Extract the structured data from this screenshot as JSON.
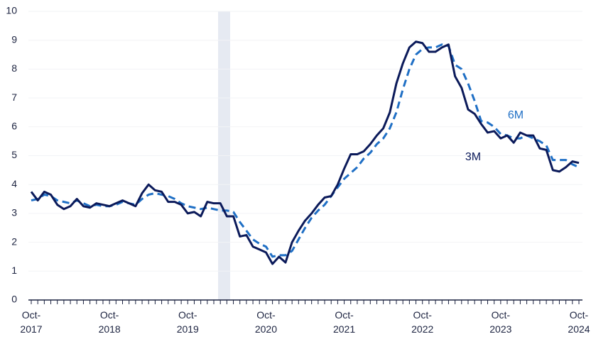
{
  "chart_data": {
    "type": "line",
    "categories": [
      "Oct-2017",
      null,
      null,
      null,
      null,
      null,
      null,
      null,
      null,
      null,
      null,
      null,
      "Oct-2018",
      null,
      null,
      null,
      null,
      null,
      null,
      null,
      null,
      null,
      null,
      null,
      "Oct-2019",
      null,
      null,
      null,
      null,
      null,
      null,
      null,
      null,
      null,
      null,
      null,
      "Oct-2020",
      null,
      null,
      null,
      null,
      null,
      null,
      null,
      null,
      null,
      null,
      null,
      "Oct-2021",
      null,
      null,
      null,
      null,
      null,
      null,
      null,
      null,
      null,
      null,
      null,
      "Oct-2022",
      null,
      null,
      null,
      null,
      null,
      null,
      null,
      null,
      null,
      null,
      null,
      "Oct-2023",
      null,
      null,
      null,
      null,
      null,
      null,
      null,
      null,
      null,
      null,
      null,
      "Oct-2024"
    ],
    "series": [
      {
        "name": "3M",
        "color": "#0b1a5a",
        "dash": false,
        "values": [
          3.75,
          3.45,
          3.75,
          3.65,
          3.3,
          3.15,
          3.25,
          3.5,
          3.25,
          3.2,
          3.35,
          3.3,
          3.25,
          3.35,
          3.45,
          3.35,
          3.25,
          3.7,
          4.0,
          3.8,
          3.75,
          3.4,
          3.4,
          3.3,
          3.0,
          3.05,
          2.9,
          3.4,
          3.35,
          3.35,
          2.9,
          2.9,
          2.2,
          2.25,
          1.85,
          1.75,
          1.65,
          1.25,
          1.5,
          1.3,
          2.0,
          2.4,
          2.75,
          3.0,
          3.3,
          3.55,
          3.6,
          4.0,
          4.55,
          5.05,
          5.05,
          5.15,
          5.4,
          5.7,
          5.95,
          6.5,
          7.5,
          8.2,
          8.75,
          8.95,
          8.9,
          8.6,
          8.6,
          8.75,
          8.85,
          7.75,
          7.35,
          6.6,
          6.45,
          6.1,
          5.8,
          5.85,
          5.6,
          5.7,
          5.45,
          5.8,
          5.7,
          5.7,
          5.25,
          5.2,
          4.5,
          4.45,
          4.6,
          4.8,
          4.75
        ]
      },
      {
        "name": "6M",
        "color": "#1f6fc5",
        "dash": true,
        "values": [
          3.45,
          3.5,
          3.65,
          3.6,
          3.45,
          3.4,
          3.35,
          3.45,
          3.35,
          3.25,
          3.3,
          3.25,
          3.25,
          3.3,
          3.4,
          3.35,
          3.3,
          3.5,
          3.65,
          3.7,
          3.65,
          3.6,
          3.5,
          3.35,
          3.25,
          3.2,
          3.15,
          3.2,
          3.15,
          3.1,
          3.1,
          3.05,
          2.7,
          2.4,
          2.1,
          1.95,
          1.85,
          1.5,
          1.55,
          1.55,
          1.7,
          2.1,
          2.5,
          2.85,
          3.1,
          3.3,
          3.6,
          3.9,
          4.2,
          4.4,
          4.6,
          4.9,
          5.1,
          5.4,
          5.6,
          5.95,
          6.5,
          7.3,
          8.0,
          8.5,
          8.7,
          8.75,
          8.75,
          8.85,
          8.8,
          8.15,
          8.0,
          7.5,
          6.9,
          6.2,
          6.15,
          6.0,
          5.75,
          5.7,
          5.6,
          5.6,
          5.7,
          5.6,
          5.5,
          5.35,
          4.85,
          4.85,
          4.85,
          4.7,
          4.6
        ]
      }
    ],
    "ylim": [
      0,
      10
    ],
    "yticks": [
      0,
      1,
      2,
      3,
      4,
      5,
      6,
      7,
      8,
      9,
      10
    ]
  }
}
